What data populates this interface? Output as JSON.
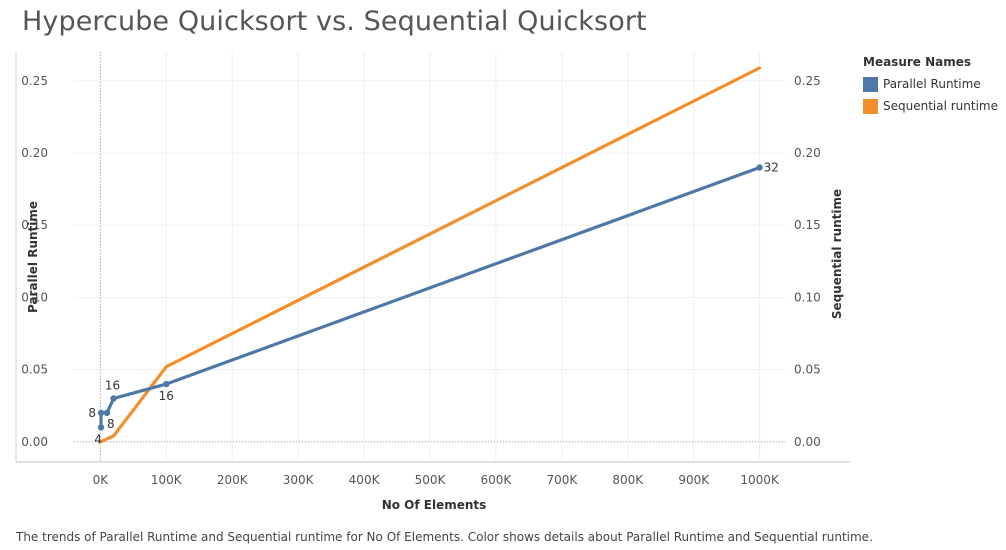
{
  "title": "Hypercube Quicksort vs. Sequential Quicksort",
  "caption": "The trends of Parallel Runtime and Sequential runtime for No Of Elements.  Color shows details about Parallel Runtime and Sequential runtime.",
  "legend": {
    "title": "Measure Names",
    "items": [
      {
        "label": "Parallel Runtime",
        "color": "#4e79a7"
      },
      {
        "label": "Sequential runtime",
        "color": "#f28e2b"
      }
    ]
  },
  "chart_data": {
    "type": "line",
    "title": "Hypercube Quicksort vs. Sequential Quicksort",
    "xlabel": "No Of Elements",
    "ylabel_left": "Parallel Runtime",
    "ylabel_right": "Sequential runtime",
    "xlim": [
      -40000,
      1040000
    ],
    "ylim": [
      -0.014,
      0.27
    ],
    "x_ticks": [
      0,
      100000,
      200000,
      300000,
      400000,
      500000,
      600000,
      700000,
      800000,
      900000,
      1000000
    ],
    "x_tick_labels": [
      "0K",
      "100K",
      "200K",
      "300K",
      "400K",
      "500K",
      "600K",
      "700K",
      "800K",
      "900K",
      "1000K"
    ],
    "y_ticks": [
      0,
      0.05,
      0.1,
      0.15,
      0.2,
      0.25
    ],
    "y_tick_labels": [
      "0.00",
      "0.05",
      "0.10",
      "0.15",
      "0.20",
      "0.25"
    ],
    "grid": true,
    "legend_position": "right",
    "series": [
      {
        "name": "Parallel Runtime",
        "color": "#4e79a7",
        "x": [
          1000,
          1000,
          10000,
          20000,
          100000,
          1000000
        ],
        "y": [
          0.01,
          0.02,
          0.02,
          0.03,
          0.04,
          0.19
        ],
        "labels": [
          "4",
          "8",
          "8",
          "16",
          "16",
          "32"
        ],
        "markers": true
      },
      {
        "name": "Sequential runtime",
        "color": "#f28e2b",
        "x": [
          1000,
          10000,
          20000,
          100000,
          1000000
        ],
        "y": [
          0.0,
          0.002,
          0.004,
          0.052,
          0.259
        ],
        "markers": false
      }
    ]
  }
}
